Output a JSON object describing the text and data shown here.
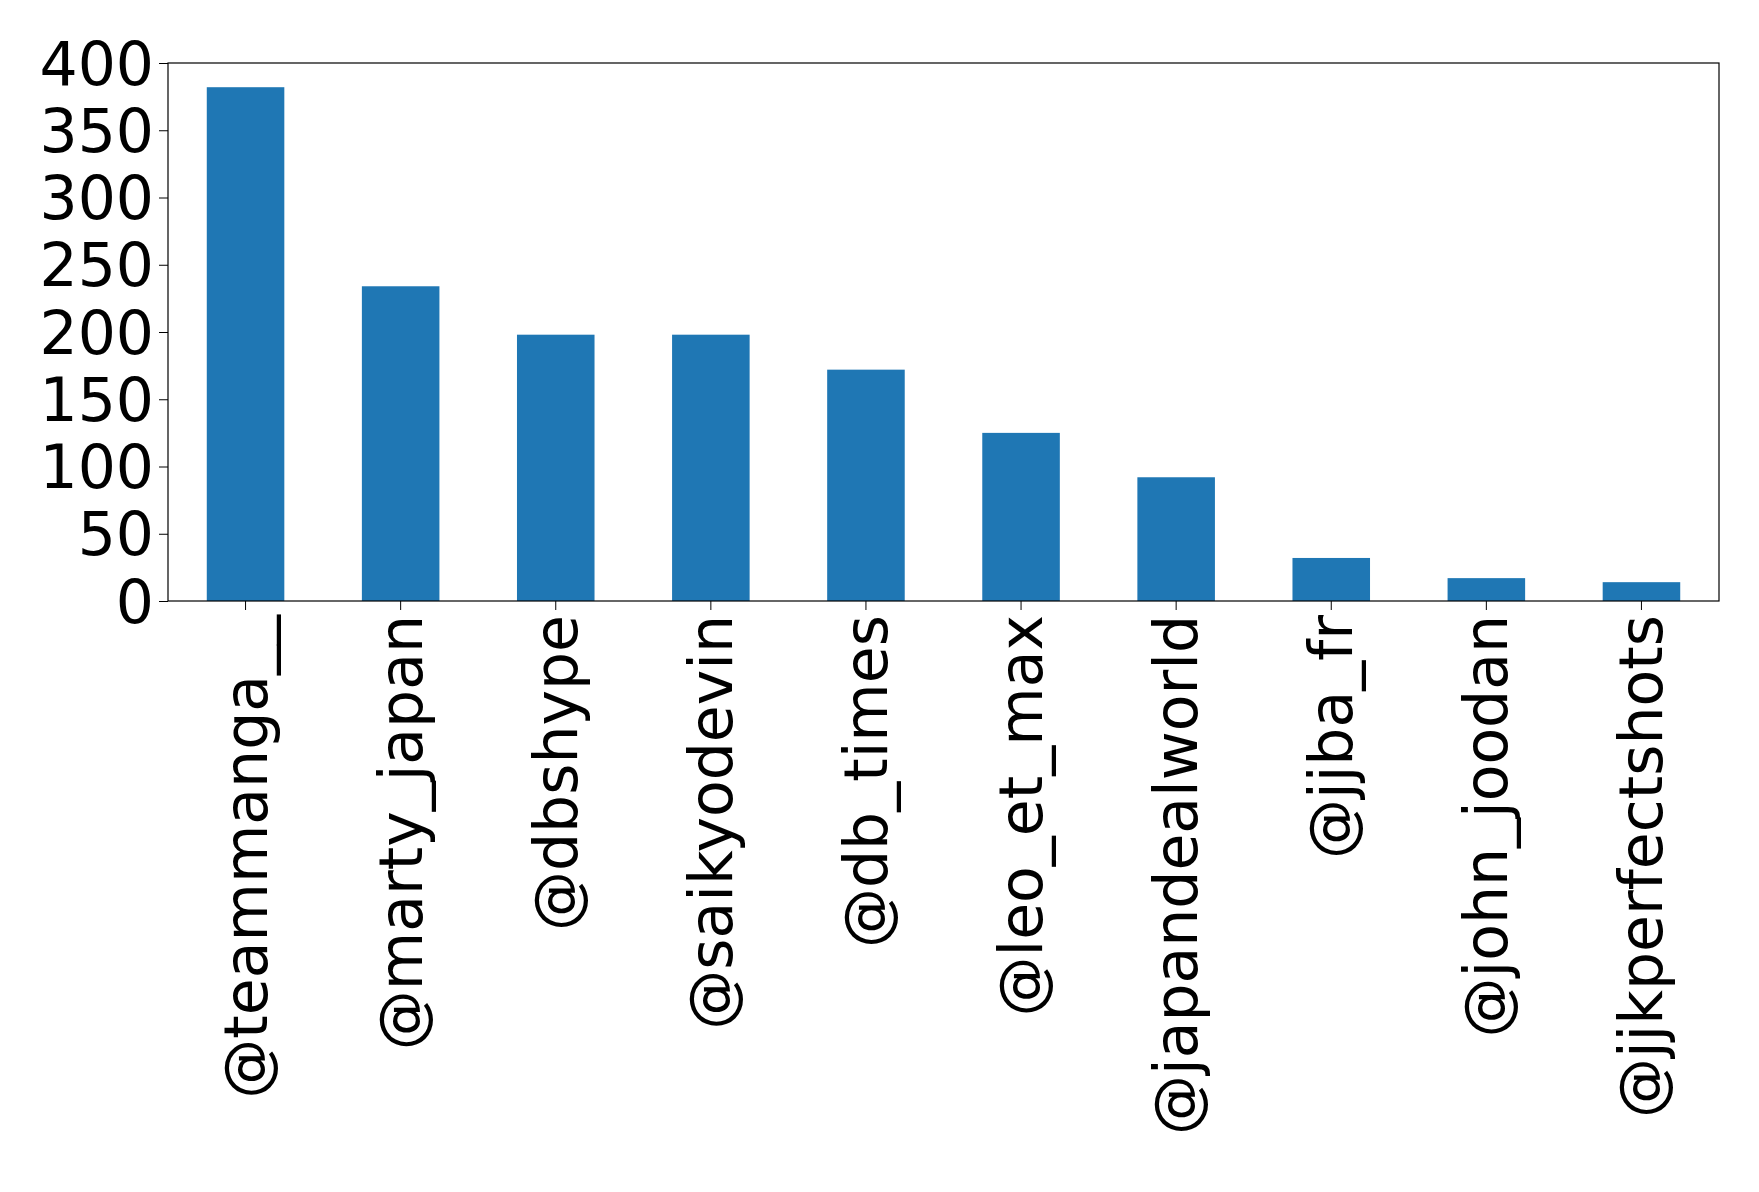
{
  "chart_data": {
    "type": "bar",
    "categories": [
      "@teammanga__",
      "@marty_japan",
      "@dbshype",
      "@saikyodevin",
      "@db_times",
      "@leo_et_max",
      "@japandealworld",
      "@jjba_fr",
      "@john_joodan",
      "@jjkperfectshots"
    ],
    "values": [
      382,
      234,
      198,
      198,
      172,
      125,
      92,
      32,
      17,
      14
    ],
    "color": "#1f77b4",
    "ylim": [
      0,
      400
    ],
    "yticks": [
      0,
      50,
      100,
      150,
      200,
      250,
      300,
      350,
      400
    ],
    "grid": false
  }
}
